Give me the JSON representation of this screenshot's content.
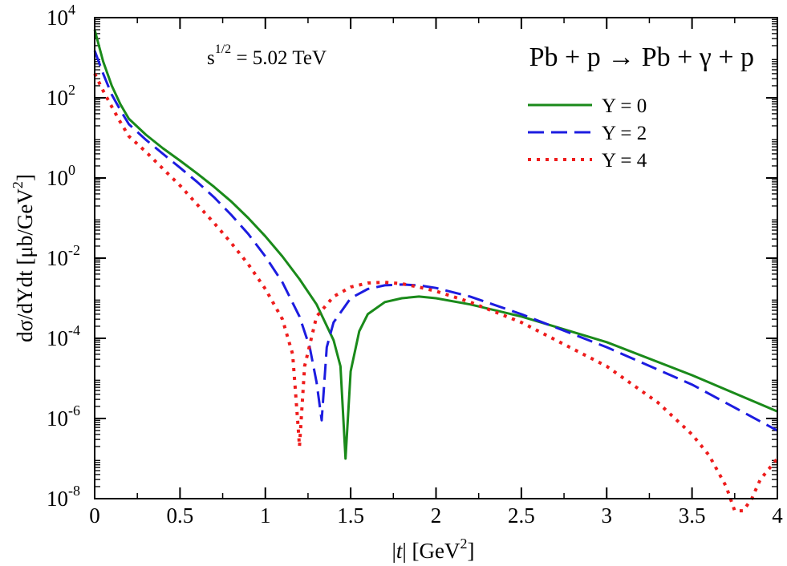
{
  "chart_data": {
    "type": "line",
    "title": "",
    "xlabel": "|t| [GeV^2]",
    "ylabel": "dσ/dYdt [μb/GeV^2]",
    "xlim": [
      0,
      4
    ],
    "ylim": [
      1e-08,
      10000.0
    ],
    "y_scale": "log",
    "grid": false,
    "legend_position": "top-right",
    "x_ticks": [
      "0",
      "0.5",
      "1",
      "1.5",
      "2",
      "2.5",
      "3",
      "3.5",
      "4"
    ],
    "y_ticks": [
      {
        "base": "10",
        "exp": "4"
      },
      {
        "base": "10",
        "exp": "2"
      },
      {
        "base": "10",
        "exp": "0"
      },
      {
        "base": "10",
        "exp": "-2"
      },
      {
        "base": "10",
        "exp": "-4"
      },
      {
        "base": "10",
        "exp": "-6"
      },
      {
        "base": "10",
        "exp": "-8"
      }
    ],
    "annotations": {
      "energy_prefix": "s",
      "energy_exp": "1/2",
      "energy_value": " = 5.02 TeV",
      "reaction": "Pb + p → Pb + γ + p"
    },
    "series": [
      {
        "name": "Y = 0",
        "color": "#1a8a1a",
        "dash": "solid",
        "points": [
          [
            0,
            5000
          ],
          [
            0.05,
            800
          ],
          [
            0.1,
            200
          ],
          [
            0.15,
            70
          ],
          [
            0.2,
            30
          ],
          [
            0.3,
            12
          ],
          [
            0.4,
            5.5
          ],
          [
            0.5,
            2.7
          ],
          [
            0.6,
            1.3
          ],
          [
            0.7,
            0.6
          ],
          [
            0.8,
            0.26
          ],
          [
            0.9,
            0.1
          ],
          [
            1.0,
            0.035
          ],
          [
            1.1,
            0.011
          ],
          [
            1.2,
            0.003
          ],
          [
            1.3,
            0.0007
          ],
          [
            1.4,
            9e-05
          ],
          [
            1.44,
            2e-05
          ],
          [
            1.47,
            1e-07
          ],
          [
            1.5,
            1.5e-05
          ],
          [
            1.55,
            0.00015
          ],
          [
            1.6,
            0.0004
          ],
          [
            1.7,
            0.0008
          ],
          [
            1.8,
            0.001
          ],
          [
            1.9,
            0.0011
          ],
          [
            2.0,
            0.001
          ],
          [
            2.2,
            0.0007
          ],
          [
            2.5,
            0.00035
          ],
          [
            3.0,
            8e-05
          ],
          [
            3.5,
            1.2e-05
          ],
          [
            4.0,
            1.5e-06
          ]
        ]
      },
      {
        "name": "Y = 2",
        "color": "#1c1ce0",
        "dash": "dashed",
        "points": [
          [
            0,
            1500
          ],
          [
            0.05,
            400
          ],
          [
            0.1,
            120
          ],
          [
            0.15,
            50
          ],
          [
            0.2,
            22
          ],
          [
            0.3,
            9
          ],
          [
            0.4,
            4
          ],
          [
            0.5,
            1.8
          ],
          [
            0.6,
            0.8
          ],
          [
            0.7,
            0.33
          ],
          [
            0.8,
            0.12
          ],
          [
            0.9,
            0.04
          ],
          [
            1.0,
            0.011
          ],
          [
            1.1,
            0.0025
          ],
          [
            1.2,
            0.00035
          ],
          [
            1.26,
            6e-05
          ],
          [
            1.3,
            8e-06
          ],
          [
            1.33,
            9e-07
          ],
          [
            1.36,
            6e-05
          ],
          [
            1.4,
            0.00025
          ],
          [
            1.5,
            0.001
          ],
          [
            1.6,
            0.0017
          ],
          [
            1.7,
            0.0021
          ],
          [
            1.8,
            0.0022
          ],
          [
            1.9,
            0.0021
          ],
          [
            2.0,
            0.0018
          ],
          [
            2.2,
            0.0011
          ],
          [
            2.5,
            0.0004
          ],
          [
            3.0,
            6e-05
          ],
          [
            3.5,
            7e-06
          ],
          [
            4.0,
            5e-07
          ]
        ]
      },
      {
        "name": "Y = 4",
        "color": "#ee1c1c",
        "dash": "dotted",
        "points": [
          [
            0,
            400
          ],
          [
            0.05,
            150
          ],
          [
            0.1,
            60
          ],
          [
            0.15,
            25
          ],
          [
            0.2,
            11
          ],
          [
            0.3,
            4.5
          ],
          [
            0.4,
            1.7
          ],
          [
            0.5,
            0.65
          ],
          [
            0.6,
            0.22
          ],
          [
            0.7,
            0.075
          ],
          [
            0.8,
            0.024
          ],
          [
            0.9,
            0.007
          ],
          [
            1.0,
            0.0017
          ],
          [
            1.1,
            0.0003
          ],
          [
            1.16,
            4e-05
          ],
          [
            1.19,
            8e-07
          ],
          [
            1.2,
            2e-07
          ],
          [
            1.23,
            2e-05
          ],
          [
            1.3,
            0.00035
          ],
          [
            1.4,
            0.0011
          ],
          [
            1.5,
            0.0019
          ],
          [
            1.6,
            0.0024
          ],
          [
            1.7,
            0.0025
          ],
          [
            1.8,
            0.0023
          ],
          [
            1.9,
            0.0019
          ],
          [
            2.0,
            0.0015
          ],
          [
            2.2,
            0.0008
          ],
          [
            2.5,
            0.00025
          ],
          [
            3.0,
            2e-05
          ],
          [
            3.3,
            2.5e-06
          ],
          [
            3.5,
            4e-07
          ],
          [
            3.6,
            1.2e-07
          ],
          [
            3.7,
            2e-08
          ],
          [
            3.75,
            5e-09
          ],
          [
            3.8,
            5e-09
          ],
          [
            3.85,
            1e-08
          ],
          [
            3.9,
            3e-08
          ],
          [
            4.0,
            1e-07
          ]
        ]
      }
    ]
  }
}
